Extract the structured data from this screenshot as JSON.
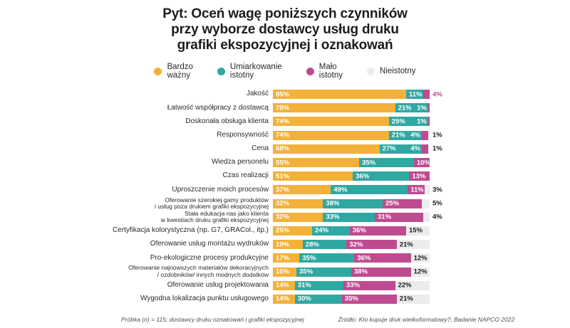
{
  "title_lines": [
    "Pyt: Oceń wagę poniższych czynników",
    "przy wyborze dostawcy usług druku",
    "grafiki ekspozycyjnej i oznakowań"
  ],
  "legend": [
    {
      "label": "Bardzo ważny",
      "label_lines": "Bardzo\nważny",
      "color": "#F3B13A"
    },
    {
      "label": "Umiarkowanie istotny",
      "label_lines": "Umiarkowanie\nistotny",
      "color": "#30A8A2"
    },
    {
      "label": "Mało istotny",
      "label_lines": "Mało\nistotny",
      "color": "#BE4B90"
    },
    {
      "label": "Nieistotny",
      "label_lines": "Nieistotny",
      "color": "#ECECEC"
    }
  ],
  "chart_data": {
    "type": "bar",
    "stacked": true,
    "orientation": "horizontal",
    "unit": "%",
    "xlim": [
      0,
      100
    ],
    "grid": false,
    "legend_position": "top",
    "title": "Pyt: Oceń wagę poniższych czynników przy wyborze dostawcy usług druku grafiki ekspozycyjnej i oznakowań",
    "categories": [
      "Jakość",
      "Łatwość współpracy z dostawcą",
      "Doskonała obsługa klienta",
      "Responsywność",
      "Cena",
      "Wiedza personelu",
      "Czas realizacji",
      "Uproszczenie moich procesów",
      "Oferowanie szerokiej gamy produktów\ni usług poza drukiem grafiki ekspozycyjnej",
      "Stała edukacja nas jako klienta\nw kwestiach druku grafiki ekspozycyjnej",
      "Certyfikacja kolorystyczna (np. G7, GRACol., itp.)",
      "Oferowanie usług montażu wydruków",
      "Pro-ekologiczne procesy produkcyjne",
      "Oferowanie najnowszych materiałów dekoracyjnych\n/ ozdobników/ innych modnych dodatków",
      "Oferowanie usług projektowania",
      "Wygodna lokalizacja punktu usługowego"
    ],
    "series": [
      {
        "name": "Bardzo ważny",
        "key": "bardzo-wazny",
        "color": "#F3B13A",
        "values": [
          85,
          78,
          74,
          74,
          68,
          55,
          51,
          37,
          32,
          32,
          25,
          19,
          17,
          15,
          14,
          14
        ]
      },
      {
        "name": "Umiarkowanie istotny",
        "key": "umiarkowanie-istotny",
        "color": "#30A8A2",
        "values": [
          11,
          21,
          25,
          21,
          27,
          35,
          36,
          49,
          38,
          33,
          24,
          28,
          35,
          35,
          31,
          30
        ]
      },
      {
        "name": "Mało istotny",
        "key": "malo-istotny",
        "color": "#BE4B90",
        "values": [
          4,
          1,
          1,
          4,
          4,
          10,
          13,
          11,
          25,
          31,
          36,
          32,
          36,
          38,
          33,
          35
        ]
      },
      {
        "name": "Nieistotny",
        "key": "nieistotny",
        "color": "#ECECEC",
        "values": [
          0,
          0,
          0,
          1,
          1,
          0,
          0,
          3,
          5,
          4,
          15,
          21,
          12,
          12,
          22,
          21
        ]
      }
    ]
  },
  "footer": {
    "left": "Próbka (n) = 115; dostawcy druku oznakowań i grafiki ekspozycyjnej",
    "right": "Źródło: Kto kupuje druk wielkoformatowy?, Badanie NAPCO 2022"
  },
  "colors": {
    "background": "#FFFFFF",
    "text": "#1D1D1F",
    "muted_text": "#4F4F4F",
    "bardzo_wazny": "#F3B13A",
    "umiarkowanie_istotny": "#30A8A2",
    "malo_istotny": "#BE4B90",
    "nieistotny": "#ECECEC"
  }
}
